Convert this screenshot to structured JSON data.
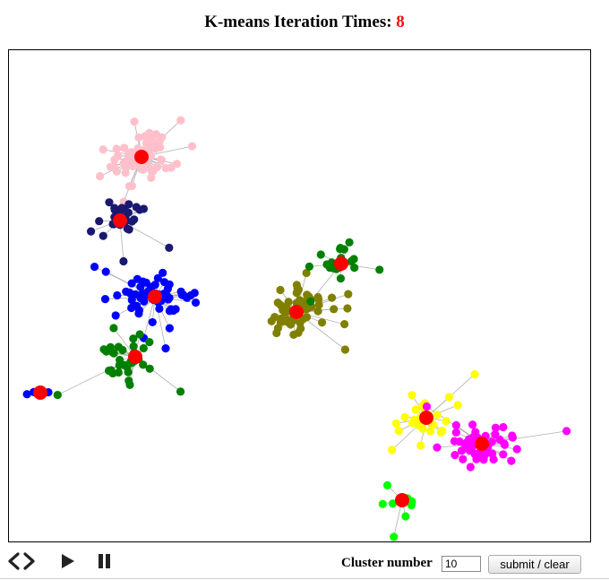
{
  "header": {
    "title_prefix": "K-means Iteration Times: ",
    "iteration_count": "8"
  },
  "controls": {
    "icons": [
      "code-toggle-icon",
      "play-icon",
      "pause-icon"
    ],
    "cluster_label": "Cluster number",
    "cluster_value": "10",
    "submit_label": "submit / clear"
  },
  "colors": {
    "centroid": "#ff0000",
    "link": "#b0b0b0",
    "iteration_count": "#ee1111"
  },
  "visualization": {
    "type": "k-means-cluster-graph",
    "cluster_count": 10,
    "clusters": [
      {
        "color": "#ffc0cb",
        "points": 70
      },
      {
        "color": "#191970",
        "points": 28
      },
      {
        "color": "#0000ff",
        "points": 62
      },
      {
        "color": "#008000",
        "points": 34
      },
      {
        "color": "#808000",
        "points": 60
      },
      {
        "color": "#008000",
        "points": 20
      },
      {
        "color": "#0000ff",
        "points": 5
      },
      {
        "color": "#ffff00",
        "points": 34
      },
      {
        "color": "#ff00ff",
        "points": 50
      },
      {
        "color": "#00ff00",
        "points": 9
      }
    ]
  }
}
